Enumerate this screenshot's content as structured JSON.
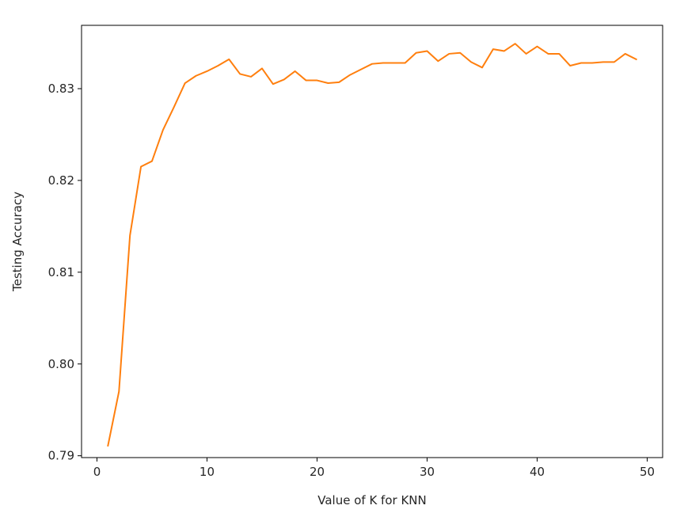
{
  "chart_data": {
    "type": "line",
    "title": "",
    "xlabel": "Value of K for KNN",
    "ylabel": "Testing Accuracy",
    "xlim": [
      -1.4,
      51.4
    ],
    "ylim": [
      0.7898,
      0.8369
    ],
    "grid": false,
    "legend": "none",
    "x_ticks": [
      0,
      10,
      20,
      30,
      40,
      50
    ],
    "x_tick_labels": [
      "0",
      "10",
      "20",
      "30",
      "40",
      "50"
    ],
    "y_ticks": [
      0.79,
      0.8,
      0.81,
      0.82,
      0.83
    ],
    "y_tick_labels": [
      "0.79",
      "0.80",
      "0.81",
      "0.82",
      "0.83"
    ],
    "series": [
      {
        "color": "#ff7f0e",
        "x": [
          1,
          2,
          3,
          4,
          5,
          6,
          7,
          8,
          9,
          10,
          11,
          12,
          13,
          14,
          15,
          16,
          17,
          18,
          19,
          20,
          21,
          22,
          23,
          24,
          25,
          26,
          27,
          28,
          29,
          30,
          31,
          32,
          33,
          34,
          35,
          36,
          37,
          38,
          39,
          40,
          41,
          42,
          43,
          44,
          45,
          46,
          47,
          48,
          49
        ],
        "y": [
          0.7911,
          0.797,
          0.814,
          0.8215,
          0.8221,
          0.8255,
          0.828,
          0.8306,
          0.8314,
          0.8319,
          0.8325,
          0.8332,
          0.8316,
          0.8313,
          0.8322,
          0.8305,
          0.831,
          0.8319,
          0.8309,
          0.8309,
          0.8306,
          0.8307,
          0.8315,
          0.8321,
          0.8327,
          0.8328,
          0.8328,
          0.8328,
          0.8339,
          0.8341,
          0.833,
          0.8338,
          0.8339,
          0.8329,
          0.8323,
          0.8343,
          0.8341,
          0.8349,
          0.8338,
          0.8346,
          0.8338,
          0.8338,
          0.8325,
          0.8328,
          0.8328,
          0.8329,
          0.8329,
          0.8338,
          0.8332
        ]
      }
    ]
  }
}
